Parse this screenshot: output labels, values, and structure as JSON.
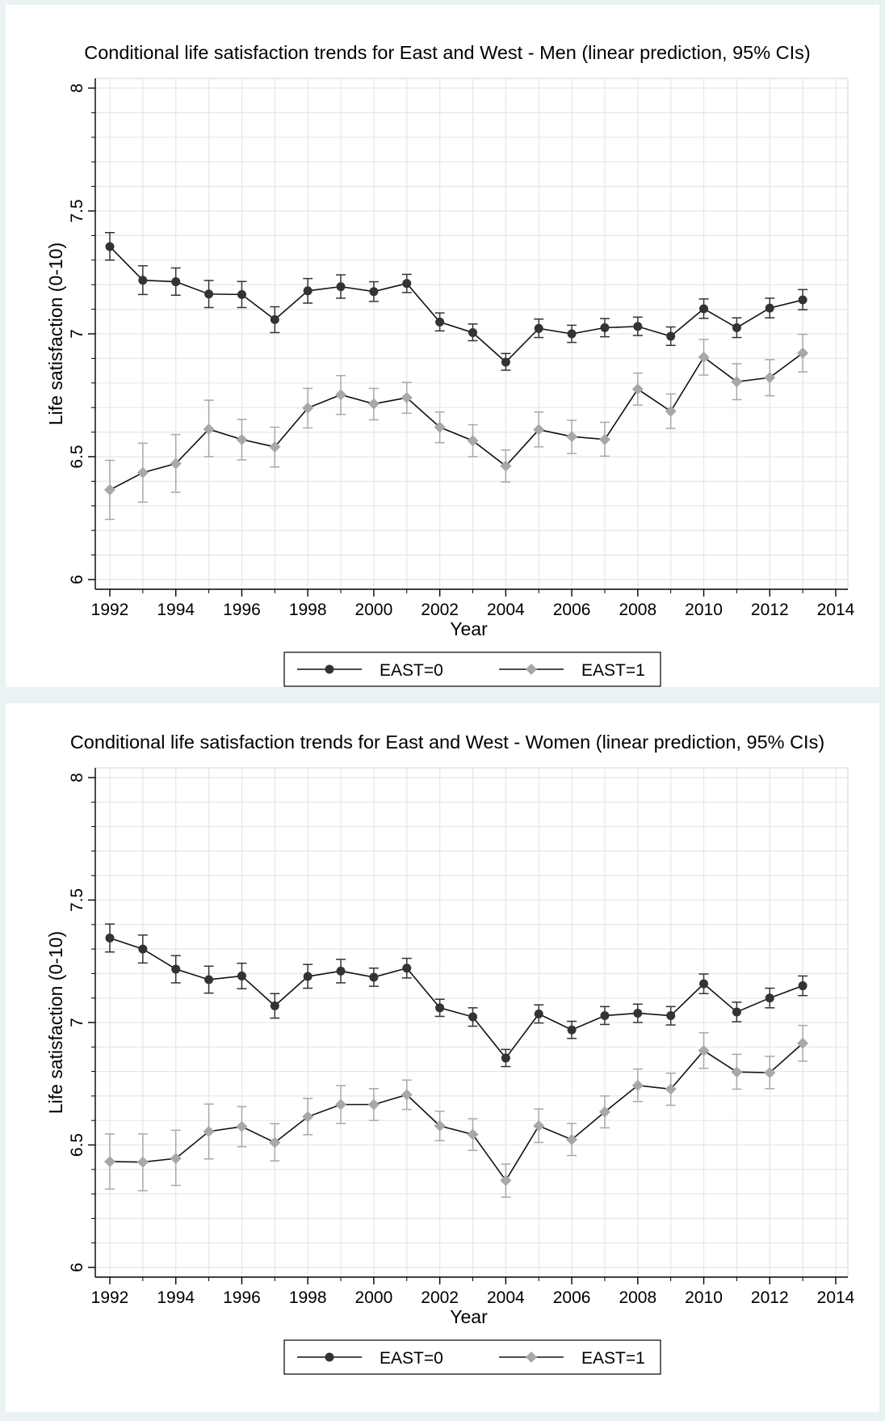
{
  "chart_data": [
    {
      "type": "line",
      "title": "Conditional life satisfaction trends for East and West - Men (linear prediction, 95% CIs)",
      "xlabel": "Year",
      "ylabel": "Life satisfaction (0-10)",
      "xlim": [
        1992,
        2014
      ],
      "ylim": [
        6,
        8
      ],
      "xticks": [
        1992,
        1994,
        1996,
        1998,
        2000,
        2002,
        2004,
        2006,
        2008,
        2010,
        2012,
        2014
      ],
      "yticks": [
        6,
        6.5,
        7,
        7.5,
        8
      ],
      "ytick_labels": [
        "6",
        "6.5",
        "7",
        "7.5",
        "8"
      ],
      "grid": true,
      "legend": "bottom",
      "x": [
        1992,
        1993,
        1994,
        1995,
        1996,
        1997,
        1998,
        1999,
        2000,
        2001,
        2002,
        2003,
        2004,
        2005,
        2006,
        2007,
        2008,
        2009,
        2010,
        2011,
        2012,
        2013
      ],
      "series": [
        {
          "name": "EAST=0",
          "marker": "circle",
          "color": "#333333",
          "values": [
            7.355,
            7.218,
            7.212,
            7.162,
            7.16,
            7.058,
            7.175,
            7.192,
            7.172,
            7.205,
            7.048,
            7.005,
            6.885,
            7.022,
            7.0,
            7.025,
            7.03,
            6.99,
            7.102,
            7.025,
            7.105,
            7.138
          ],
          "ci_low": [
            7.3,
            7.16,
            7.157,
            7.107,
            7.107,
            7.005,
            7.125,
            7.145,
            7.132,
            7.168,
            7.012,
            6.972,
            6.852,
            6.985,
            6.965,
            6.988,
            6.993,
            6.953,
            7.063,
            6.985,
            7.065,
            7.098
          ],
          "ci_high": [
            7.412,
            7.277,
            7.268,
            7.217,
            7.213,
            7.11,
            7.225,
            7.24,
            7.212,
            7.242,
            7.085,
            7.04,
            6.92,
            7.06,
            7.035,
            7.062,
            7.068,
            7.028,
            7.142,
            7.065,
            7.145,
            7.18
          ]
        },
        {
          "name": "EAST=1",
          "marker": "diamond",
          "color": "#a8a8a8",
          "values": [
            6.365,
            6.435,
            6.472,
            6.612,
            6.57,
            6.54,
            6.698,
            6.752,
            6.715,
            6.74,
            6.62,
            6.565,
            6.462,
            6.61,
            6.582,
            6.57,
            6.775,
            6.685,
            6.905,
            6.805,
            6.822,
            6.922
          ],
          "ci_low": [
            6.245,
            6.315,
            6.355,
            6.5,
            6.487,
            6.458,
            6.617,
            6.672,
            6.65,
            6.677,
            6.557,
            6.5,
            6.397,
            6.54,
            6.513,
            6.502,
            6.71,
            6.615,
            6.832,
            6.732,
            6.748,
            6.845
          ],
          "ci_high": [
            6.485,
            6.555,
            6.59,
            6.73,
            6.652,
            6.62,
            6.778,
            6.83,
            6.778,
            6.802,
            6.682,
            6.63,
            6.527,
            6.682,
            6.648,
            6.64,
            6.84,
            6.755,
            6.977,
            6.878,
            6.895,
            6.998
          ]
        }
      ]
    },
    {
      "type": "line",
      "title": "Conditional life satisfaction trends for East and West - Women (linear prediction, 95% CIs)",
      "xlabel": "Year",
      "ylabel": "Life satisfaction (0-10)",
      "xlim": [
        1992,
        2014
      ],
      "ylim": [
        6,
        8
      ],
      "xticks": [
        1992,
        1994,
        1996,
        1998,
        2000,
        2002,
        2004,
        2006,
        2008,
        2010,
        2012,
        2014
      ],
      "yticks": [
        6,
        6.5,
        7,
        7.5,
        8
      ],
      "ytick_labels": [
        "6",
        "6.5",
        "7",
        "7.5",
        "8"
      ],
      "grid": true,
      "legend": "bottom",
      "x": [
        1992,
        1993,
        1994,
        1995,
        1996,
        1997,
        1998,
        1999,
        2000,
        2001,
        2002,
        2003,
        2004,
        2005,
        2006,
        2007,
        2008,
        2009,
        2010,
        2011,
        2012,
        2013
      ],
      "series": [
        {
          "name": "EAST=0",
          "marker": "circle",
          "color": "#333333",
          "values": [
            7.345,
            7.3,
            7.218,
            7.175,
            7.19,
            7.068,
            7.188,
            7.21,
            7.185,
            7.222,
            7.06,
            7.023,
            6.855,
            7.035,
            6.97,
            7.028,
            7.038,
            7.028,
            7.158,
            7.043,
            7.1,
            7.15
          ],
          "ci_low": [
            7.288,
            7.243,
            7.162,
            7.12,
            7.138,
            7.018,
            7.14,
            7.162,
            7.148,
            7.182,
            7.025,
            6.985,
            6.82,
            6.998,
            6.935,
            6.992,
            7.0,
            6.99,
            7.118,
            7.003,
            7.06,
            7.11
          ],
          "ci_high": [
            7.402,
            7.357,
            7.273,
            7.23,
            7.242,
            7.118,
            7.237,
            7.258,
            7.222,
            7.262,
            7.095,
            7.06,
            6.89,
            7.072,
            7.005,
            7.065,
            7.075,
            7.065,
            7.198,
            7.083,
            7.14,
            7.19
          ]
        },
        {
          "name": "EAST=1",
          "marker": "diamond",
          "color": "#a8a8a8",
          "values": [
            6.432,
            6.43,
            6.445,
            6.555,
            6.575,
            6.51,
            6.615,
            6.665,
            6.665,
            6.705,
            6.578,
            6.543,
            6.355,
            6.578,
            6.522,
            6.635,
            6.743,
            6.728,
            6.885,
            6.798,
            6.795,
            6.915
          ],
          "ci_low": [
            6.32,
            6.313,
            6.335,
            6.443,
            6.493,
            6.435,
            6.542,
            6.588,
            6.6,
            6.645,
            6.518,
            6.478,
            6.287,
            6.51,
            6.457,
            6.57,
            6.677,
            6.662,
            6.813,
            6.728,
            6.73,
            6.842
          ],
          "ci_high": [
            6.545,
            6.545,
            6.56,
            6.667,
            6.657,
            6.587,
            6.69,
            6.742,
            6.73,
            6.765,
            6.638,
            6.607,
            6.422,
            6.647,
            6.588,
            6.7,
            6.81,
            6.793,
            6.958,
            6.87,
            6.862,
            6.988
          ]
        }
      ]
    }
  ]
}
